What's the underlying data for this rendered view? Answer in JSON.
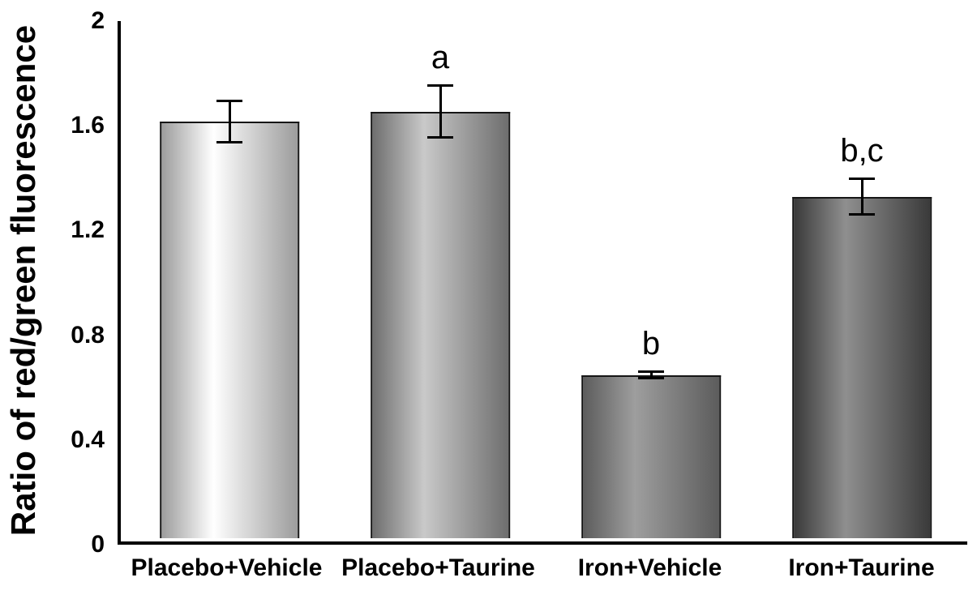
{
  "chart_data": {
    "type": "bar",
    "title": "",
    "xlabel": "",
    "ylabel": "Ratio of red/green fluorescence",
    "ylim": [
      0,
      2
    ],
    "yticks": [
      0,
      0.4,
      0.8,
      1.2,
      1.6,
      2
    ],
    "ytick_labels": [
      "0",
      "0.4",
      "0.8",
      "1.2",
      "1.6",
      "2"
    ],
    "grid": "off",
    "legend": "none",
    "categories": [
      "Placebo+Vehicle",
      "Placebo+Taurine",
      "Iron+Vehicle",
      "Iron+Taurine"
    ],
    "values": [
      1.61,
      1.65,
      0.63,
      1.32
    ],
    "errors": [
      0.08,
      0.1,
      0.012,
      0.07
    ],
    "annotations": [
      "",
      "a",
      "b",
      "b,c"
    ],
    "bar_colors": [
      {
        "dark": "#9c9c9c",
        "light": "#ffffff"
      },
      {
        "dark": "#6e6e6e",
        "light": "#c9c9c9"
      },
      {
        "dark": "#5c5c5c",
        "light": "#9e9e9e"
      },
      {
        "dark": "#3a3a3a",
        "light": "#8f8f8f"
      }
    ],
    "error_bar_color": "#000000",
    "axis_color": "#000000",
    "background_color": "#ffffff"
  }
}
